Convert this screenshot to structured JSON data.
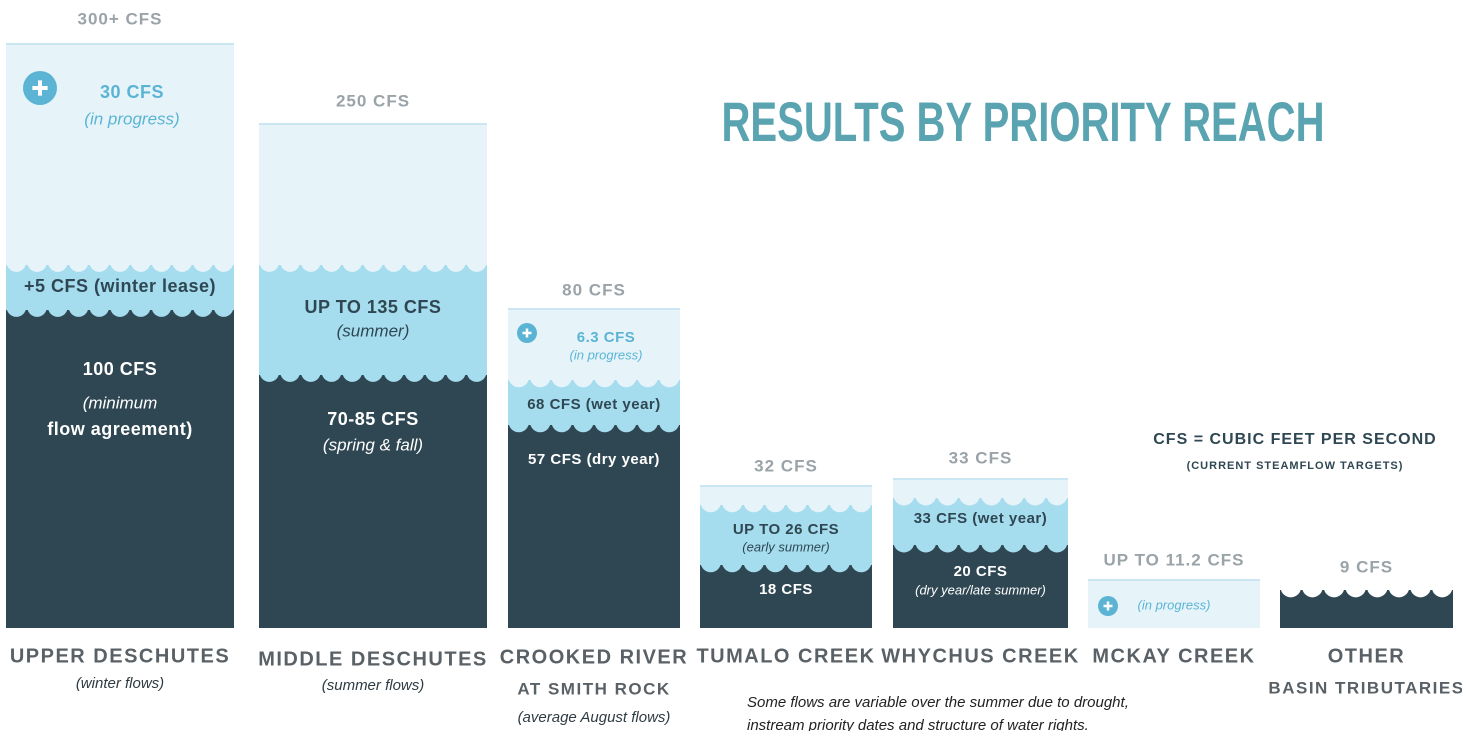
{
  "title": "RESULTS BY PRIORITY REACH",
  "legend": {
    "line1": "CFS = CUBIC FEET PER SECOND",
    "line2": "(CURRENT STEAMFLOW TARGETS)"
  },
  "note": [
    "Some flows are variable over the summer due to drought,",
    "instream priority dates and structure of water rights."
  ],
  "columns": [
    {
      "top_label": "300+ CFS",
      "name": [
        "UPPER DESCHUTES"
      ],
      "sub": "(winter flows)",
      "bands": [
        [
          "30 CFS",
          "(in progress)"
        ],
        [
          "+5 CFS (winter lease)"
        ],
        [
          "100 CFS",
          "(minimum",
          "flow agreement)"
        ]
      ]
    },
    {
      "top_label": "250 CFS",
      "name": [
        "MIDDLE DESCHUTES"
      ],
      "sub": "(summer flows)",
      "bands": [
        [
          "UP TO 135 CFS",
          "(summer)"
        ],
        [
          "70-85 CFS",
          "(spring & fall)"
        ]
      ]
    },
    {
      "top_label": "80 CFS",
      "name": [
        "CROOKED RIVER",
        "AT SMITH ROCK"
      ],
      "sub": "(average August flows)",
      "bands": [
        [
          "6.3 CFS",
          "(in progress)"
        ],
        [
          "68 CFS (wet year)"
        ],
        [
          "57 CFS (dry year)"
        ]
      ]
    },
    {
      "top_label": "32 CFS",
      "name": [
        "TUMALO CREEK"
      ],
      "bands": [
        [
          "UP TO 26 CFS",
          "(early summer)"
        ],
        [
          "18 CFS"
        ]
      ]
    },
    {
      "top_label": "33 CFS",
      "name": [
        "WHYCHUS CREEK"
      ],
      "bands": [
        [
          "33 CFS (wet year)"
        ],
        [
          "20 CFS",
          "(dry year/late summer)"
        ]
      ]
    },
    {
      "top_label": "UP TO 11.2 CFS",
      "name": [
        "MCKAY CREEK"
      ],
      "bands": [
        [
          "(in progress)"
        ]
      ]
    },
    {
      "top_label": "9 CFS",
      "name": [
        "OTHER",
        "BASIN TRIBUTARIES"
      ],
      "bands": []
    }
  ]
}
